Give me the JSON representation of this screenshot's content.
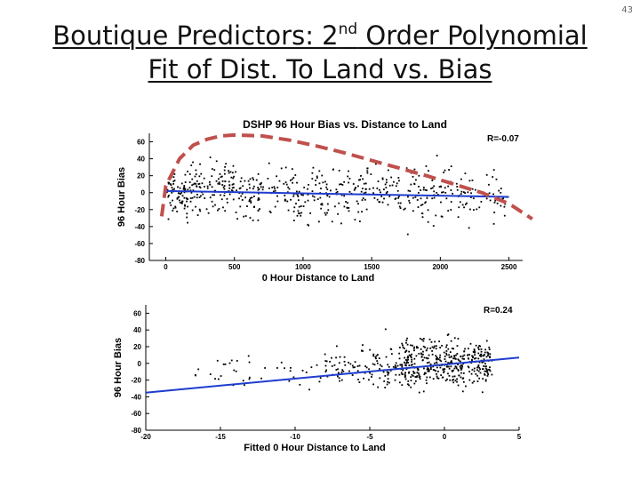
{
  "slide": {
    "number": "43",
    "title_line1_pre": "Boutique Predictors: 2",
    "title_line1_sup": "nd",
    "title_line1_post": " Order Polynomial",
    "title_line2": "Fit of Dist. To Land vs. Bias"
  },
  "colors": {
    "scatter": "#000000",
    "fit_line": "#1f3ccf",
    "polynomial_overlay": "#c0504d",
    "axis": "#000000",
    "title": "#111111"
  },
  "chart_data": [
    {
      "type": "scatter",
      "title": "DSHP 96 Hour Bias vs. Distance to Land",
      "xlabel": "0 Hour Distance to Land",
      "ylabel": "96 Hour Bias",
      "xlim": [
        -120,
        2600
      ],
      "ylim": [
        -80,
        70
      ],
      "xticks": [
        0,
        500,
        1000,
        1500,
        2000,
        2500
      ],
      "yticks": [
        -80,
        -60,
        -40,
        -20,
        0,
        20,
        40,
        60
      ],
      "annotation": "R=-0.07",
      "grid": false,
      "linear_fit": {
        "x": [
          0,
          2500
        ],
        "y": [
          2,
          -5
        ]
      },
      "polynomial_overlay": {
        "style": "dashed",
        "x": [
          -30,
          0,
          100,
          200,
          300,
          400,
          500,
          700,
          900,
          1100,
          1300,
          1500,
          1700,
          1900,
          2100,
          2300,
          2500,
          2670
        ],
        "y": [
          -28,
          8,
          40,
          56,
          63,
          67,
          68,
          67,
          62,
          55,
          47,
          38,
          29,
          20,
          10,
          0,
          -13,
          -31
        ]
      },
      "scatter_clusters": [
        {
          "x": [
            0,
            200
          ],
          "y": [
            -40,
            30
          ],
          "n": 70
        },
        {
          "x": [
            150,
            500
          ],
          "y": [
            -35,
            50
          ],
          "n": 110
        },
        {
          "x": [
            500,
            1500
          ],
          "y": [
            -45,
            45
          ],
          "n": 220
        },
        {
          "x": [
            1500,
            2200
          ],
          "y": [
            -40,
            40
          ],
          "n": 130
        },
        {
          "x": [
            2200,
            2500
          ],
          "y": [
            -35,
            25
          ],
          "n": 30
        },
        {
          "x": [
            0,
            2500
          ],
          "y": [
            -75,
            60
          ],
          "n": 60
        }
      ]
    },
    {
      "type": "scatter",
      "title": "",
      "xlabel": "Fitted 0 Hour Distance to Land",
      "ylabel": "96 Hour Bias",
      "xlim": [
        -20,
        5
      ],
      "ylim": [
        -80,
        70
      ],
      "xticks": [
        -20,
        -15,
        -10,
        -5,
        0,
        5
      ],
      "yticks": [
        -80,
        -60,
        -40,
        -20,
        0,
        20,
        40,
        60
      ],
      "annotation": "R=0.24",
      "grid": false,
      "linear_fit": {
        "x": [
          -20,
          5
        ],
        "y": [
          -35,
          7
        ]
      },
      "scatter_clusters": [
        {
          "x": [
            -3,
            3.2
          ],
          "y": [
            -40,
            40
          ],
          "n": 380
        },
        {
          "x": [
            -8,
            -3
          ],
          "y": [
            -35,
            30
          ],
          "n": 90
        },
        {
          "x": [
            -17,
            -8
          ],
          "y": [
            -40,
            20
          ],
          "n": 40
        },
        {
          "x": [
            -6,
            3.2
          ],
          "y": [
            -75,
            60
          ],
          "n": 50
        }
      ]
    }
  ]
}
